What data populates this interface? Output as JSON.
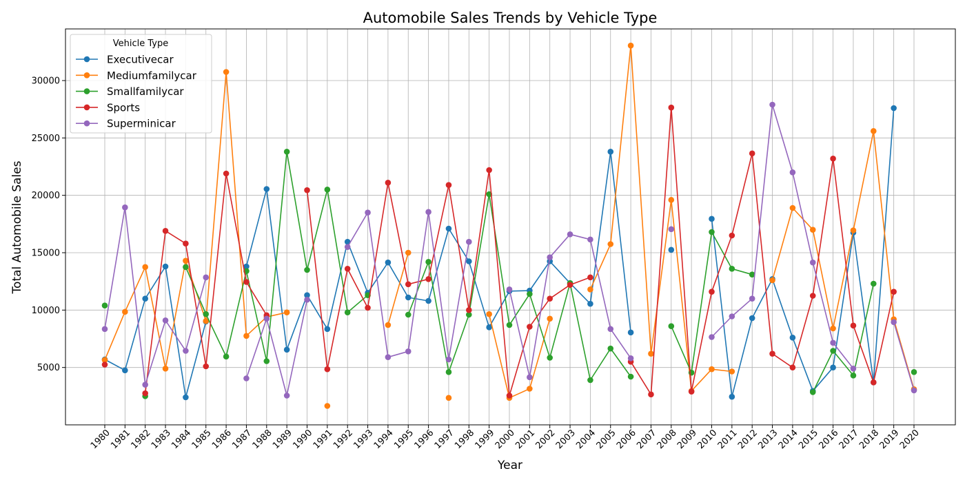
{
  "chart_data": {
    "type": "line",
    "title": "Automobile Sales Trends by Vehicle Type",
    "xlabel": "Year",
    "ylabel": "Total Automobile Sales",
    "legend_title": "Vehicle Type",
    "legend_placement": "top-left",
    "grid": true,
    "ylim": [
      0,
      34500
    ],
    "yticks": [
      5000,
      10000,
      15000,
      20000,
      25000,
      30000
    ],
    "x": [
      1980,
      1981,
      1982,
      1983,
      1984,
      1985,
      1986,
      1987,
      1988,
      1989,
      1990,
      1991,
      1992,
      1993,
      1994,
      1995,
      1996,
      1997,
      1998,
      1999,
      2000,
      2001,
      2002,
      2003,
      2004,
      2005,
      2006,
      2007,
      2008,
      2009,
      2010,
      2011,
      2012,
      2013,
      2014,
      2015,
      2016,
      2017,
      2018,
      2019,
      2020
    ],
    "series": [
      {
        "name": "Executivecar",
        "color": "#1f77b4",
        "values": [
          5700,
          4750,
          11000,
          13800,
          2400,
          9000,
          null,
          13800,
          20550,
          6550,
          11300,
          8350,
          15950,
          11500,
          14150,
          11100,
          10800,
          17100,
          14250,
          8500,
          11650,
          11700,
          14250,
          12350,
          10550,
          23800,
          8050,
          null,
          15250,
          null,
          17950,
          2450,
          9300,
          12700,
          7600,
          2950,
          5000,
          16750,
          3700,
          27600,
          null
        ]
      },
      {
        "name": "Mediumfamilycar",
        "color": "#ff7f0e",
        "values": [
          5650,
          9850,
          13750,
          4900,
          14300,
          9050,
          30750,
          7750,
          9400,
          9800,
          null,
          1650,
          null,
          null,
          8700,
          15000,
          null,
          2350,
          null,
          9650,
          2350,
          3150,
          9250,
          null,
          11800,
          15750,
          33050,
          6200,
          19600,
          2950,
          4850,
          4650,
          null,
          12600,
          18900,
          17000,
          8400,
          16950,
          25600,
          9200,
          3100
        ]
      },
      {
        "name": "Smallfamilycar",
        "color": "#2ca02c",
        "values": [
          10400,
          null,
          2500,
          null,
          13750,
          9650,
          5950,
          13400,
          5550,
          23800,
          13500,
          20500,
          9800,
          11300,
          null,
          9600,
          14200,
          4600,
          9600,
          20100,
          8700,
          11400,
          5850,
          12350,
          3900,
          6650,
          4200,
          null,
          8600,
          4550,
          16800,
          13600,
          13100,
          null,
          null,
          2850,
          6450,
          4300,
          12300,
          null,
          4600
        ]
      },
      {
        "name": "Sports",
        "color": "#d62728",
        "values": [
          5250,
          null,
          2750,
          16900,
          15800,
          5100,
          21900,
          12450,
          9550,
          null,
          20450,
          4850,
          13600,
          10200,
          21100,
          12250,
          12700,
          20900,
          10000,
          22200,
          2550,
          8550,
          11000,
          12200,
          12850,
          null,
          5500,
          2650,
          27650,
          2900,
          11600,
          16500,
          23650,
          6200,
          5000,
          11250,
          23200,
          8650,
          3700,
          11600,
          null
        ]
      },
      {
        "name": "Superminicar",
        "color": "#9467bd",
        "values": [
          8350,
          18950,
          3500,
          9100,
          6450,
          12850,
          null,
          4050,
          9250,
          2550,
          10900,
          null,
          15500,
          18500,
          5900,
          6400,
          18550,
          5700,
          15950,
          null,
          11800,
          4150,
          14600,
          16600,
          16150,
          8350,
          5800,
          null,
          17050,
          null,
          7650,
          9450,
          11000,
          27900,
          22000,
          14150,
          7150,
          4900,
          null,
          8950,
          3000
        ]
      }
    ]
  }
}
